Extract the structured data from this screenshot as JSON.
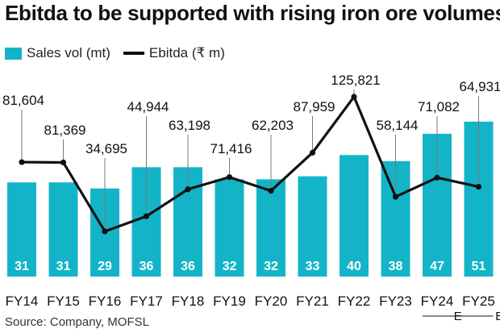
{
  "title": "Ebitda to be supported with rising iron ore volumes",
  "legend": {
    "bar_label": "Sales vol (mt)",
    "line_label": "Ebitda (₹ m)"
  },
  "source": "Source: Company, MOFSL",
  "colors": {
    "bar": "#14b4c8",
    "line": "#111111",
    "bar_text": "#ffffff"
  },
  "chart_data": {
    "type": "bar",
    "title": "Ebitda to be supported with rising iron ore volumes",
    "categories": [
      "FY14",
      "FY15",
      "FY16",
      "FY17",
      "FY18",
      "FY19",
      "FY20",
      "FY21",
      "FY22",
      "FY23",
      "FY24",
      "FY25"
    ],
    "category_suffixes": [
      "",
      "",
      "",
      "",
      "",
      "",
      "",
      "",
      "",
      "",
      "E",
      "E"
    ],
    "series": [
      {
        "name": "Sales vol (mt)",
        "type": "bar",
        "values": [
          31,
          31,
          29,
          36,
          36,
          32,
          32,
          33,
          40,
          38,
          47,
          51
        ]
      },
      {
        "name": "Ebitda (₹ m)",
        "type": "line",
        "values": [
          81604,
          81369,
          34695,
          44944,
          63198,
          71416,
          62203,
          87959,
          125821,
          58144,
          71082,
          64931
        ]
      }
    ],
    "ylim_bar": [
      0,
      58
    ],
    "ylim_line": [
      30000,
      152000
    ],
    "grid": false,
    "legend_position": "top-left"
  }
}
